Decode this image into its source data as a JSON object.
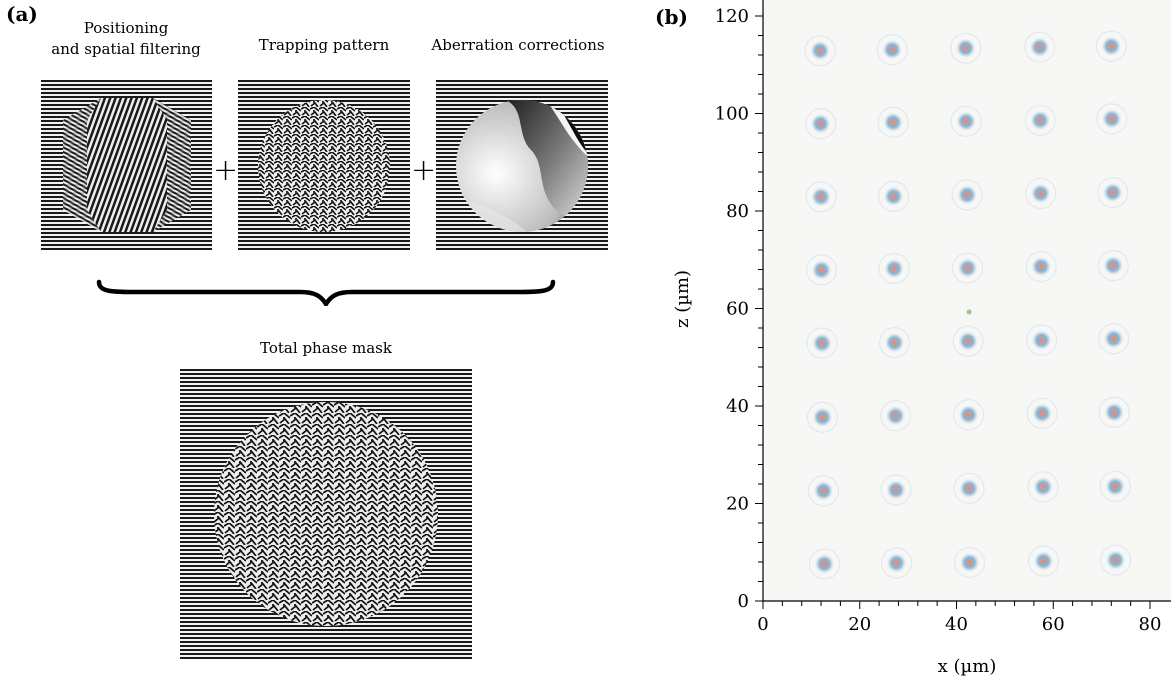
{
  "panel_a": {
    "label": "(a)",
    "captions": {
      "positioning_line1": "Positioning",
      "positioning_line2": "and spatial filtering",
      "trapping": "Trapping pattern",
      "aberration": "Aberration corrections",
      "total": "Total phase mask"
    },
    "operators": {
      "plus1": "+",
      "plus2": "+"
    }
  },
  "panel_b": {
    "label": "(b)"
  },
  "chart_data": {
    "type": "scatter",
    "xlabel": "x (µm)",
    "ylabel": "z (µm)",
    "xlim": [
      0,
      82
    ],
    "ylim": [
      0,
      124
    ],
    "xticks": [
      0,
      20,
      40,
      60,
      80
    ],
    "yticks": [
      0,
      20,
      40,
      60,
      80,
      100,
      120
    ],
    "grid": false,
    "series": [
      {
        "points": [
          [
            11.8,
            112.9
          ],
          [
            26.7,
            113.1
          ],
          [
            41.9,
            113.4
          ],
          [
            57.2,
            113.6
          ],
          [
            72.0,
            113.8
          ],
          [
            11.9,
            97.9
          ],
          [
            26.9,
            98.2
          ],
          [
            42.0,
            98.4
          ],
          [
            57.3,
            98.6
          ],
          [
            72.1,
            98.9
          ],
          [
            12.0,
            82.9
          ],
          [
            27.0,
            83.0
          ],
          [
            42.2,
            83.3
          ],
          [
            57.4,
            83.6
          ],
          [
            72.3,
            83.8
          ],
          [
            12.1,
            67.9
          ],
          [
            27.1,
            68.2
          ],
          [
            42.3,
            68.3
          ],
          [
            57.5,
            68.6
          ],
          [
            72.4,
            68.8
          ],
          [
            12.2,
            52.9
          ],
          [
            27.2,
            53.0
          ],
          [
            42.4,
            53.3
          ],
          [
            57.6,
            53.5
          ],
          [
            72.5,
            53.8
          ],
          [
            12.3,
            37.7
          ],
          [
            27.4,
            38.0
          ],
          [
            42.5,
            38.2
          ],
          [
            57.7,
            38.5
          ],
          [
            72.6,
            38.7
          ],
          [
            12.5,
            22.6
          ],
          [
            27.5,
            22.8
          ],
          [
            42.6,
            23.1
          ],
          [
            57.9,
            23.4
          ],
          [
            72.8,
            23.5
          ],
          [
            12.7,
            7.6
          ],
          [
            27.6,
            7.8
          ],
          [
            42.7,
            7.9
          ],
          [
            58.0,
            8.2
          ],
          [
            72.9,
            8.4
          ]
        ]
      }
    ],
    "colors": {
      "halo": "#7fa9c8",
      "core": "#ee7f6f",
      "stray": "#8fbd6f"
    }
  }
}
